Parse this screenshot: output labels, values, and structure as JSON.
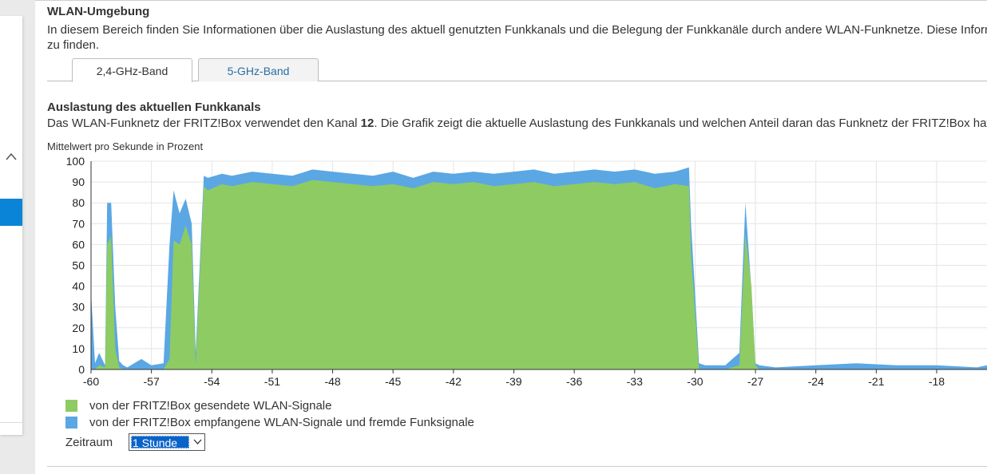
{
  "section": {
    "title": "WLAN-Umgebung",
    "intro_line1": "In diesem Bereich finden Sie Informationen über die Auslastung des aktuell genutzten Funkkanals und die Belegung der Funkkanäle durch andere WLAN-Funknetze. Diese Informationen u",
    "intro_line2": "zu finden."
  },
  "tabs": [
    {
      "label": "2,4-GHz-Band",
      "active": true
    },
    {
      "label": "5-GHz-Band",
      "active": false
    }
  ],
  "channel": {
    "heading": "Auslastung des aktuellen Funkkanals",
    "desc_before": "Das WLAN-Funknetz der FRITZ!Box verwendet den Kanal ",
    "channel_number": "12",
    "desc_after": ". Die Grafik zeigt die aktuelle Auslastung des Funkkanals und welchen Anteil daran das Funknetz der FRITZ!Box hat."
  },
  "legend": {
    "sent": "von der FRITZ!Box gesendete WLAN-Signale",
    "received": "von der FRITZ!Box empfangene WLAN-Signale und fremde Funksignale"
  },
  "period": {
    "label": "Zeitraum",
    "selected": "1 Stunde"
  },
  "colors": {
    "sent": "#8ecb63",
    "received": "#5aa7e4",
    "accent": "#0a84d6"
  },
  "icons": {
    "collapse": "chevron-up-icon",
    "select_arrow": "chevron-down-icon"
  },
  "chart_data": {
    "type": "area",
    "ylabel": "Mittelwert pro Sekunde in Prozent",
    "xlim": [
      -60,
      -15.5
    ],
    "ylim": [
      0,
      100
    ],
    "x_ticks": [
      -60,
      -57,
      -54,
      -51,
      -48,
      -45,
      -42,
      -39,
      -36,
      -33,
      -30,
      -27,
      -24,
      -21,
      -18
    ],
    "y_ticks": [
      0,
      10,
      20,
      30,
      40,
      50,
      60,
      70,
      80,
      90,
      100
    ],
    "series": [
      {
        "name": "von der FRITZ!Box gesendete WLAN-Signale",
        "stacked": "bottom",
        "x": [
          -60,
          -59.8,
          -59.6,
          -59.3,
          -59.2,
          -59.0,
          -58.8,
          -58.6,
          -58.4,
          -58.2,
          -57.5,
          -57.0,
          -56.4,
          -56.1,
          -55.9,
          -55.6,
          -55.3,
          -55.0,
          -54.8,
          -54.4,
          -54.2,
          -53.5,
          -53.0,
          -52.0,
          -51.0,
          -50.0,
          -49.0,
          -48.0,
          -47.0,
          -46.0,
          -45.0,
          -44.0,
          -43.0,
          -42.0,
          -41.0,
          -40.0,
          -39.0,
          -38.0,
          -37.0,
          -36.0,
          -35.0,
          -34.0,
          -33.0,
          -32.0,
          -31.0,
          -30.3,
          -30.2,
          -29.8,
          -29.5,
          -28.5,
          -27.8,
          -27.5,
          -27.2,
          -27.0,
          -26.8,
          -26.0,
          -24.0,
          -22.0,
          -20.0,
          -18.0,
          -16.0,
          -15.5
        ],
        "values": [
          0,
          0,
          2,
          1,
          60,
          64,
          10,
          1,
          0,
          0,
          0,
          0,
          0,
          5,
          62,
          60,
          69,
          60,
          2,
          88,
          86,
          89,
          88,
          90,
          89,
          88,
          91,
          90,
          89,
          88,
          89,
          87,
          90,
          89,
          90,
          88,
          89,
          90,
          88,
          89,
          90,
          89,
          90,
          87,
          89,
          88,
          55,
          0,
          0,
          0,
          2,
          65,
          40,
          2,
          0,
          0,
          0,
          0,
          0,
          0,
          0,
          0
        ]
      },
      {
        "name": "von der FRITZ!Box empfangene WLAN-Signale und fremde Funksignale",
        "stacked": "top",
        "x": [
          -60,
          -59.8,
          -59.6,
          -59.3,
          -59.2,
          -59.0,
          -58.8,
          -58.6,
          -58.4,
          -58.2,
          -57.5,
          -57.0,
          -56.4,
          -56.1,
          -55.9,
          -55.6,
          -55.3,
          -55.0,
          -54.8,
          -54.4,
          -54.2,
          -53.5,
          -53.0,
          -52.0,
          -51.0,
          -50.0,
          -49.0,
          -48.0,
          -47.0,
          -46.0,
          -45.0,
          -44.0,
          -43.0,
          -42.0,
          -41.0,
          -40.0,
          -39.0,
          -38.0,
          -37.0,
          -36.0,
          -35.0,
          -34.0,
          -33.0,
          -32.0,
          -31.0,
          -30.3,
          -30.2,
          -29.8,
          -29.5,
          -28.5,
          -27.8,
          -27.5,
          -27.2,
          -27.0,
          -26.8,
          -26.0,
          -24.0,
          -22.0,
          -20.0,
          -18.0,
          -16.0,
          -15.5
        ],
        "values": [
          37,
          3,
          8,
          2,
          80,
          80,
          30,
          4,
          2,
          1,
          5,
          2,
          3,
          60,
          86,
          75,
          82,
          70,
          8,
          93,
          92,
          94,
          93,
          95,
          94,
          93,
          96,
          95,
          94,
          93,
          95,
          92,
          95,
          94,
          95,
          94,
          95,
          96,
          94,
          95,
          96,
          95,
          96,
          94,
          95,
          97,
          70,
          3,
          2,
          2,
          8,
          80,
          38,
          3,
          2,
          1,
          2,
          3,
          2,
          2,
          1,
          2
        ]
      }
    ],
    "grid": true,
    "legend_position": "bottom-left"
  }
}
